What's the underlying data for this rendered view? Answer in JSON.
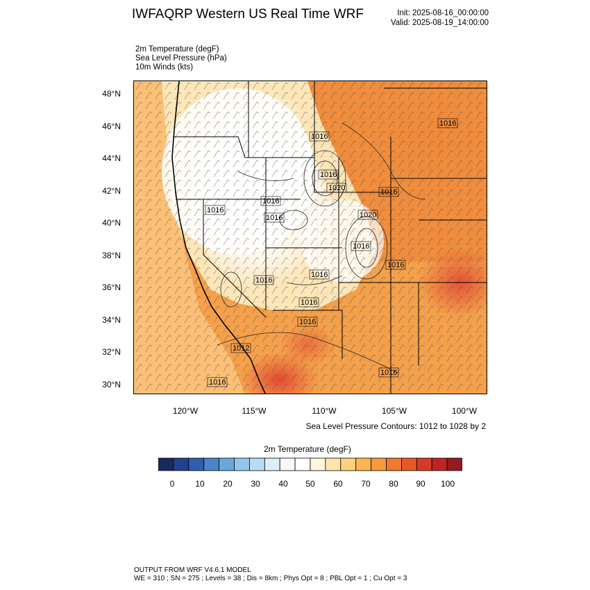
{
  "header": {
    "title": "IWFAQRP Western US Real Time WRF",
    "init": "Init: 2025-08-16_00:00:00",
    "valid": "Valid: 2025-08-19_14:00:00"
  },
  "variables": [
    "2m Temperature   (degF)",
    "Sea Level Pressure   (hPa)",
    "10m Winds   (kts)"
  ],
  "map": {
    "lat_labels": [
      "48°N",
      "46°N",
      "44°N",
      "42°N",
      "40°N",
      "38°N",
      "36°N",
      "34°N",
      "32°N",
      "30°N"
    ],
    "lon_labels": [
      "120°W",
      "115°W",
      "110°W",
      "105°W",
      "100°W"
    ],
    "pressure_labels": [
      "1016",
      "1016",
      "1016",
      "1016",
      "1016",
      "1016",
      "1016",
      "1020",
      "1020",
      "1016",
      "1016",
      "1016",
      "1016",
      "1016",
      "1016",
      "1012",
      "1016",
      "1016"
    ],
    "colors": {
      "hot": "#e34a33",
      "warm": "#f08a3a",
      "mild": "#fcc37a",
      "cool": "#fde6b8",
      "cold": "#ffffff"
    }
  },
  "contour_note": "Sea Level Pressure Contours: 1012 to 1028 by 2",
  "colorbar": {
    "title": "2m Temperature  (degF)",
    "colors": [
      "#1a2a5e",
      "#253f8f",
      "#2f5fae",
      "#4a86c6",
      "#6aa8dc",
      "#92c7ec",
      "#b8ddf3",
      "#dceef8",
      "#f5f9fc",
      "#ffffff",
      "#fff6de",
      "#ffe6ad",
      "#fdd27e",
      "#fcb651",
      "#f79a3a",
      "#f07b2c",
      "#e5592a",
      "#d63a26",
      "#bf2324",
      "#951a1d"
    ],
    "labels": [
      "0",
      "10",
      "20",
      "30",
      "40",
      "50",
      "60",
      "70",
      "80",
      "90",
      "100"
    ]
  },
  "footer": {
    "line1": "OUTPUT FROM WRF V4.6.1 MODEL",
    "line2": "WE = 310 ; SN = 275 ; Levels = 38 ; Dis = 8km ; Phys Opt = 8 ; PBL Opt = 1 ; Cu Opt = 3"
  }
}
